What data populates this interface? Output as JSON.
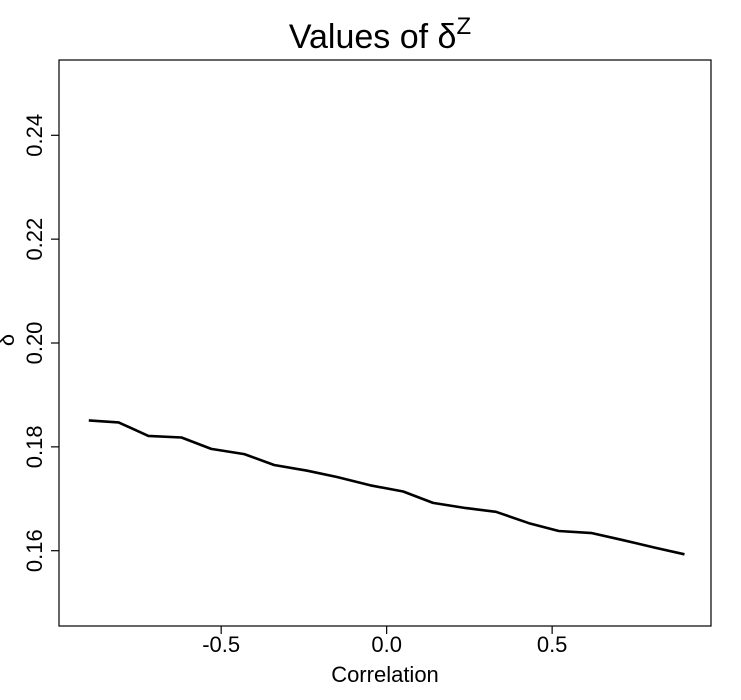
{
  "chart_data": {
    "type": "line",
    "title": "Values of δ",
    "title_superscript": "Z",
    "xlabel": "Correlation",
    "ylabel": "δ",
    "xlim": [
      -0.99,
      0.98
    ],
    "ylim": [
      0.1455,
      0.2545
    ],
    "x_ticks": [
      -0.5,
      0.0,
      0.5
    ],
    "x_tick_labels": [
      "-0.5",
      "0.0",
      "0.5"
    ],
    "y_ticks": [
      0.16,
      0.18,
      0.2,
      0.22,
      0.24
    ],
    "y_tick_labels": [
      "0.16",
      "0.18",
      "0.20",
      "0.22",
      "0.24"
    ],
    "grid": false,
    "series": [
      {
        "color": "#000000",
        "x": [
          -0.9,
          -0.81,
          -0.72,
          -0.62,
          -0.53,
          -0.43,
          -0.34,
          -0.24,
          -0.15,
          -0.05,
          0.05,
          0.14,
          0.24,
          0.33,
          0.43,
          0.52,
          0.62,
          0.71,
          0.81,
          0.9
        ],
        "y": [
          0.1851,
          0.1847,
          0.1821,
          0.1818,
          0.1796,
          0.1786,
          0.1765,
          0.1754,
          0.1742,
          0.1726,
          0.1714,
          0.1692,
          0.1682,
          0.1675,
          0.1653,
          0.1638,
          0.1634,
          0.1621,
          0.1606,
          0.1593
        ]
      }
    ]
  }
}
